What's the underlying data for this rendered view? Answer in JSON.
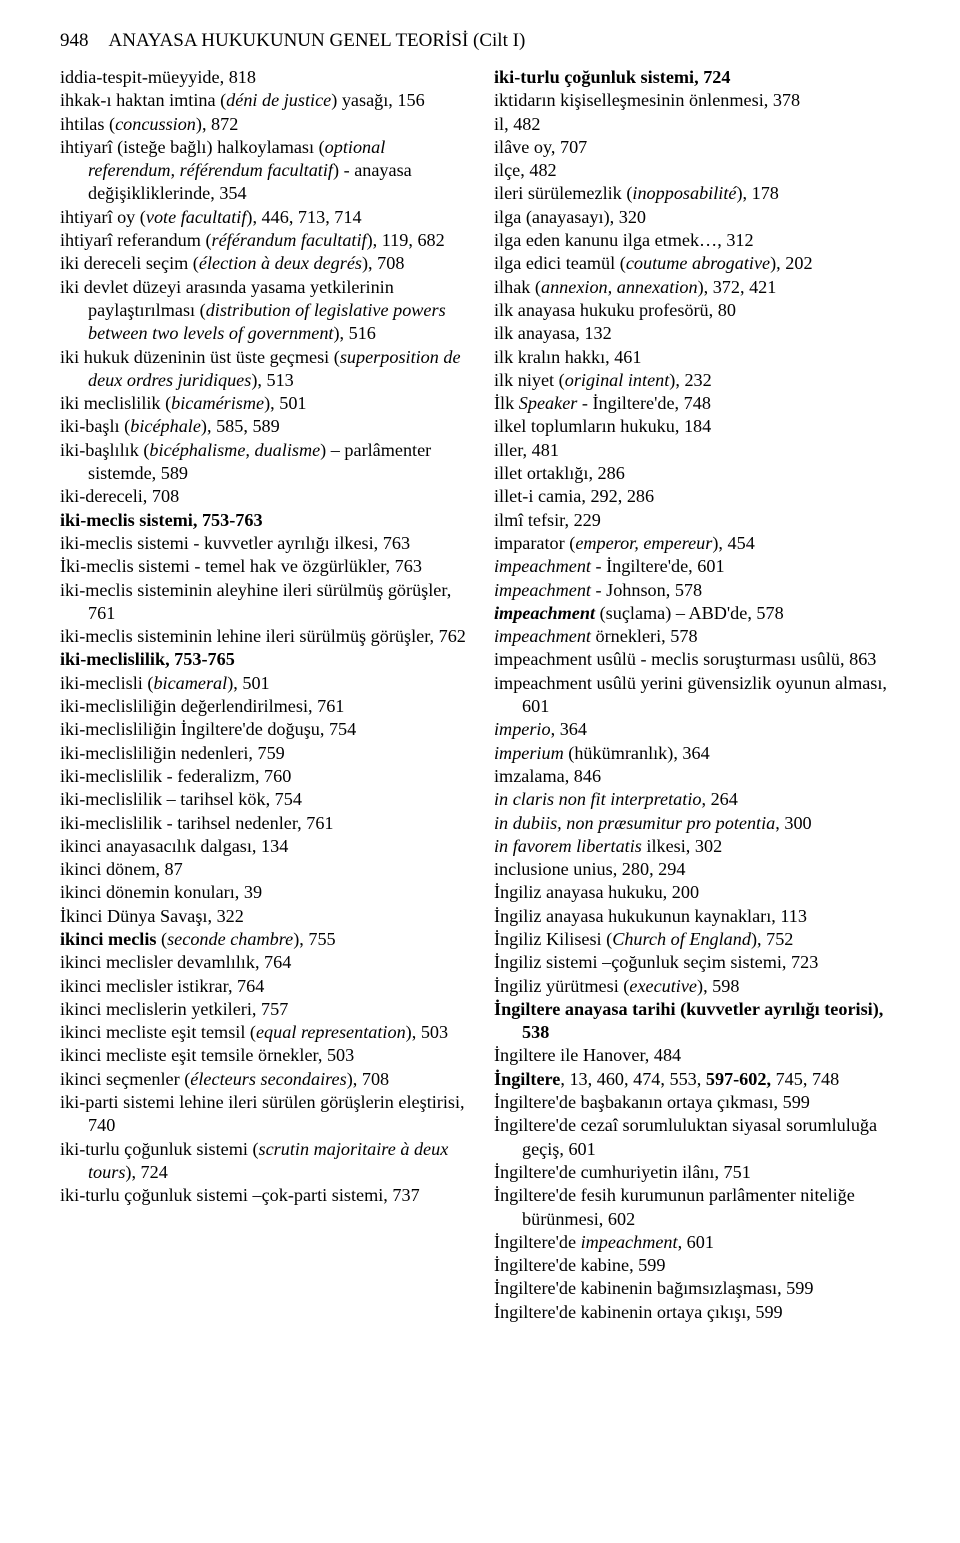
{
  "header": {
    "page_number": "948",
    "title": "ANAYASA HUKUKUNUN GENEL TEORİSİ (Cilt I)"
  },
  "left_entries": [
    [
      {
        "t": "iddia-tespit-müeyyide, 818"
      }
    ],
    [
      {
        "t": "ihkak-ı haktan imtina ("
      },
      {
        "t": "déni de justice",
        "i": true
      },
      {
        "t": ") yasağı, 156"
      }
    ],
    [
      {
        "t": "ihtilas ("
      },
      {
        "t": "concussion",
        "i": true
      },
      {
        "t": "), 872"
      }
    ],
    [
      {
        "t": "ihtiyarî (isteğe bağlı) halkoylaması ("
      },
      {
        "t": "optional referendum, référendum facultatif",
        "i": true
      },
      {
        "t": ") - anayasa değişikliklerinde, 354"
      }
    ],
    [
      {
        "t": "ihtiyarî oy ("
      },
      {
        "t": "vote facultatif",
        "i": true
      },
      {
        "t": "), 446, 713, 714"
      }
    ],
    [
      {
        "t": "ihtiyarî referandum ("
      },
      {
        "t": "référandum facultatif",
        "i": true
      },
      {
        "t": "), 119, 682"
      }
    ],
    [
      {
        "t": "iki dereceli seçim ("
      },
      {
        "t": "élection à deux degrés",
        "i": true
      },
      {
        "t": "), 708"
      }
    ],
    [
      {
        "t": "iki devlet düzeyi arasında yasama yetkilerinin paylaştırılması ("
      },
      {
        "t": "distribution of legislative powers between two levels of government",
        "i": true
      },
      {
        "t": "), 516"
      }
    ],
    [
      {
        "t": "iki hukuk düzeninin üst üste geçmesi ("
      },
      {
        "t": "superposition de deux ordres juridiques",
        "i": true
      },
      {
        "t": "), 513"
      }
    ],
    [
      {
        "t": "iki meclislilik ("
      },
      {
        "t": "bicamérisme",
        "i": true
      },
      {
        "t": "), 501"
      }
    ],
    [
      {
        "t": "iki-başlı ("
      },
      {
        "t": "bicéphale",
        "i": true
      },
      {
        "t": "), 585, 589"
      }
    ],
    [
      {
        "t": "iki-başlılık ("
      },
      {
        "t": "bicéphalisme, dualisme",
        "i": true
      },
      {
        "t": ") – parlâmenter sistemde, 589"
      }
    ],
    [
      {
        "t": "iki-dereceli, 708"
      }
    ],
    [
      {
        "t": "iki-meclis sistemi, 753-763",
        "b": true
      }
    ],
    [
      {
        "t": "iki-meclis sistemi - kuvvetler ayrılığı ilkesi, 763"
      }
    ],
    [
      {
        "t": "İki-meclis sistemi - temel hak ve özgürlükler, 763"
      }
    ],
    [
      {
        "t": "iki-meclis sisteminin aleyhine ileri sürülmüş görüşler, 761"
      }
    ],
    [
      {
        "t": "iki-meclis sisteminin lehine ileri sürülmüş görüşler, 762"
      }
    ],
    [
      {
        "t": "iki-meclislilik, 753-765",
        "b": true
      }
    ],
    [
      {
        "t": "iki-meclisli ("
      },
      {
        "t": "bicameral",
        "i": true
      },
      {
        "t": "), 501"
      }
    ],
    [
      {
        "t": "iki-meclisliliğin değerlendirilmesi, 761"
      }
    ],
    [
      {
        "t": "iki-meclisliliğin İngiltere'de doğuşu, 754"
      }
    ],
    [
      {
        "t": "iki-meclisliliğin nedenleri, 759"
      }
    ],
    [
      {
        "t": "iki-meclislilik - federalizm, 760"
      }
    ],
    [
      {
        "t": "iki-meclislilik – tarihsel kök, 754"
      }
    ],
    [
      {
        "t": "iki-meclislilik - tarihsel nedenler, 761"
      }
    ],
    [
      {
        "t": "ikinci anayasacılık dalgası, 134"
      }
    ],
    [
      {
        "t": "ikinci dönem, 87"
      }
    ],
    [
      {
        "t": "ikinci dönemin konuları, 39"
      }
    ],
    [
      {
        "t": "İkinci Dünya Savaşı, 322"
      }
    ],
    [
      {
        "t": "ikinci meclis",
        "b": true
      },
      {
        "t": " ("
      },
      {
        "t": "seconde chambre",
        "i": true
      },
      {
        "t": "), 755"
      }
    ],
    [
      {
        "t": "ikinci meclisler devamlılık, 764"
      }
    ],
    [
      {
        "t": "ikinci meclisler istikrar, 764"
      }
    ],
    [
      {
        "t": "ikinci meclislerin yetkileri, 757"
      }
    ],
    [
      {
        "t": "ikinci mecliste eşit temsil ("
      },
      {
        "t": "equal representation",
        "i": true
      },
      {
        "t": "), 503"
      }
    ],
    [
      {
        "t": "ikinci mecliste eşit temsile örnekler, 503"
      }
    ],
    [
      {
        "t": "ikinci seçmenler ("
      },
      {
        "t": "électeurs secondaires",
        "i": true
      },
      {
        "t": "), 708"
      }
    ],
    [
      {
        "t": "iki-parti sistemi lehine ileri sürülen görüşlerin eleştirisi, 740"
      }
    ],
    [
      {
        "t": "iki-turlu çoğunluk sistemi ("
      },
      {
        "t": "scrutin majoritaire à deux tours",
        "i": true
      },
      {
        "t": "), 724"
      }
    ],
    [
      {
        "t": "iki-turlu çoğunluk sistemi –çok-parti sistemi, 737"
      }
    ]
  ],
  "right_entries": [
    [
      {
        "t": "iki-turlu çoğunluk sistemi, 724",
        "b": true
      }
    ],
    [
      {
        "t": "iktidarın kişiselleşmesinin önlenmesi, 378"
      }
    ],
    [
      {
        "t": "il, 482"
      }
    ],
    [
      {
        "t": "ilâve oy, 707"
      }
    ],
    [
      {
        "t": "ilçe, 482"
      }
    ],
    [
      {
        "t": "ileri sürülemezlik ("
      },
      {
        "t": "inopposabilité",
        "i": true
      },
      {
        "t": "), 178"
      }
    ],
    [
      {
        "t": "ilga (anayasayı), 320"
      }
    ],
    [
      {
        "t": "ilga eden kanunu ilga etmek…, 312"
      }
    ],
    [
      {
        "t": "ilga edici teamül ("
      },
      {
        "t": "coutume abrogative",
        "i": true
      },
      {
        "t": "), 202"
      }
    ],
    [
      {
        "t": "ilhak ("
      },
      {
        "t": "annexion, annexation",
        "i": true
      },
      {
        "t": "), 372, 421"
      }
    ],
    [
      {
        "t": "ilk anayasa hukuku profesörü, 80"
      }
    ],
    [
      {
        "t": "ilk anayasa, 132"
      }
    ],
    [
      {
        "t": "ilk kralın hakkı, 461"
      }
    ],
    [
      {
        "t": "ilk niyet ("
      },
      {
        "t": "original intent",
        "i": true
      },
      {
        "t": "), 232"
      }
    ],
    [
      {
        "t": "İlk "
      },
      {
        "t": "Speaker",
        "i": true
      },
      {
        "t": "  - İngiltere'de, 748"
      }
    ],
    [
      {
        "t": "ilkel toplumların hukuku, 184"
      }
    ],
    [
      {
        "t": "iller, 481"
      }
    ],
    [
      {
        "t": "illet ortaklığı, 286"
      }
    ],
    [
      {
        "t": "illet-i camia, 292, 286"
      }
    ],
    [
      {
        "t": "ilmî tefsir, 229"
      }
    ],
    [
      {
        "t": "imparator ("
      },
      {
        "t": "emperor, empereur",
        "i": true
      },
      {
        "t": "), 454"
      }
    ],
    [
      {
        "t": "impeachment",
        "i": true
      },
      {
        "t": " - İngiltere'de, 601"
      }
    ],
    [
      {
        "t": "impeachment",
        "i": true
      },
      {
        "t": " - Johnson, 578"
      }
    ],
    [
      {
        "t": "impeachment",
        "b": true,
        "i": true
      },
      {
        "t": " (suçlama) – ABD'de, 578"
      }
    ],
    [
      {
        "t": "impeachment",
        "i": true
      },
      {
        "t": " örnekleri, 578"
      }
    ],
    [
      {
        "t": "impeachment usûlü - meclis soruşturması usûlü, 863"
      }
    ],
    [
      {
        "t": "impeachment usûlü yerini güvensizlik oyunun alması, 601"
      }
    ],
    [
      {
        "t": "imperio",
        "i": true
      },
      {
        "t": ", 364"
      }
    ],
    [
      {
        "t": "imperium",
        "i": true
      },
      {
        "t": " (hükümranlık), 364"
      }
    ],
    [
      {
        "t": "imzalama, 846"
      }
    ],
    [
      {
        "t": "in claris non fit interpretatio",
        "i": true
      },
      {
        "t": ", 264"
      }
    ],
    [
      {
        "t": "in dubiis, non præsumitur pro potentia",
        "i": true
      },
      {
        "t": ", 300"
      }
    ],
    [
      {
        "t": "in favorem libertatis",
        "i": true
      },
      {
        "t": " ilkesi, 302"
      }
    ],
    [
      {
        "t": "inclusione unius, 280, 294"
      }
    ],
    [
      {
        "t": "İngiliz anayasa hukuku, 200"
      }
    ],
    [
      {
        "t": "İngiliz anayasa hukukunun kaynakları, 113"
      }
    ],
    [
      {
        "t": "İngiliz Kilisesi ("
      },
      {
        "t": "Church of England",
        "i": true
      },
      {
        "t": "), 752"
      }
    ],
    [
      {
        "t": "İngiliz sistemi –çoğunluk seçim sistemi, 723"
      }
    ],
    [
      {
        "t": "İngiliz yürütmesi ("
      },
      {
        "t": "executive",
        "i": true
      },
      {
        "t": "), 598"
      }
    ],
    [
      {
        "t": "İngiltere anayasa tarihi (kuvvetler ayrılığı teorisi), 538",
        "b": true
      }
    ],
    [
      {
        "t": "İngiltere ile Hanover, 484"
      }
    ],
    [
      {
        "t": "İngiltere",
        "b": true
      },
      {
        "t": ", 13, 460, 474, 553, "
      },
      {
        "t": "597-602,",
        "b": true
      },
      {
        "t": " 745, 748"
      }
    ],
    [
      {
        "t": "İngiltere'de başbakanın ortaya çıkması, 599"
      }
    ],
    [
      {
        "t": "İngiltere'de cezaî sorumluluktan siyasal sorumluluğa geçiş, 601"
      }
    ],
    [
      {
        "t": "İngiltere'de cumhuriyetin ilânı, 751"
      }
    ],
    [
      {
        "t": "İngiltere'de fesih kurumunun parlâmenter niteliğe bürünmesi, 602"
      }
    ],
    [
      {
        "t": "İngiltere'de "
      },
      {
        "t": "impeachment",
        "i": true
      },
      {
        "t": ", 601"
      }
    ],
    [
      {
        "t": "İngiltere'de kabine, 599"
      }
    ],
    [
      {
        "t": "İngiltere'de kabinenin bağımsızlaşması, 599"
      }
    ],
    [
      {
        "t": "İngiltere'de kabinenin ortaya çıkışı, 599"
      }
    ]
  ]
}
